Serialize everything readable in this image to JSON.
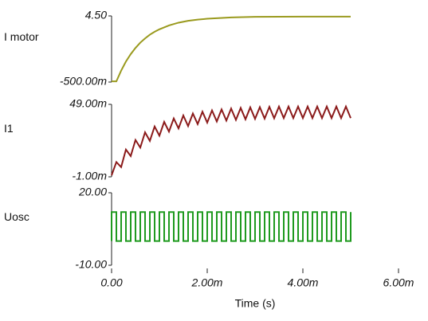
{
  "chart_data": [
    {
      "type": "line",
      "x": [
        0,
        0.0001,
        0.0002,
        0.0003,
        0.0004,
        0.0005,
        0.0006,
        0.0007,
        0.0008,
        0.0009,
        0.001,
        0.0012,
        0.0014,
        0.0016,
        0.0018,
        0.002,
        0.0025,
        0.003,
        0.004,
        0.005
      ],
      "series": [
        {
          "name": "I motor",
          "color": "#9a9a1e",
          "values": [
            -0.45,
            -0.45,
            0.36,
            1.05,
            1.61,
            2.08,
            2.48,
            2.8,
            3.08,
            3.3,
            3.49,
            3.78,
            3.99,
            4.13,
            4.22,
            4.29,
            4.39,
            4.43,
            4.45,
            4.45
          ]
        }
      ],
      "xlim": [
        0,
        0.006
      ],
      "ylim": [
        -0.5,
        4.5
      ],
      "yticks": [
        {
          "value": -0.5,
          "label": "-500.00m"
        },
        {
          "value": 4.5,
          "label": "4.50"
        }
      ]
    },
    {
      "type": "line",
      "x": [
        0,
        0.0001,
        0.0002,
        0.0003,
        0.0004,
        0.0005,
        0.0006,
        0.0007,
        0.0008,
        0.0009,
        0.001,
        0.0011,
        0.0012,
        0.0013,
        0.0014,
        0.0015,
        0.0016,
        0.0017,
        0.0018,
        0.0019,
        0.002,
        0.0021,
        0.0022,
        0.0023,
        0.0024,
        0.0025,
        0.0026,
        0.0027,
        0.0028,
        0.0029,
        0.003,
        0.0031,
        0.0032,
        0.0033,
        0.0034,
        0.0035,
        0.0036,
        0.0037,
        0.0038,
        0.0039,
        0.004,
        0.0041,
        0.0042,
        0.0043,
        0.0044,
        0.0045,
        0.0046,
        0.0047,
        0.0048,
        0.0049,
        0.005
      ],
      "series": [
        {
          "name": "I1",
          "color": "#8b1a1a",
          "values": [
            0,
            0.0092,
            0.0057,
            0.0178,
            0.0133,
            0.0244,
            0.0192,
            0.0297,
            0.0238,
            0.0337,
            0.0274,
            0.0369,
            0.0302,
            0.0393,
            0.0324,
            0.0413,
            0.034,
            0.0427,
            0.0354,
            0.0439,
            0.0364,
            0.0448,
            0.0372,
            0.0455,
            0.0378,
            0.0461,
            0.0383,
            0.0465,
            0.0387,
            0.0469,
            0.039,
            0.0471,
            0.0392,
            0.0473,
            0.0394,
            0.0475,
            0.0395,
            0.0475,
            0.0395,
            0.0475,
            0.0395,
            0.0475,
            0.0395,
            0.0475,
            0.0395,
            0.0475,
            0.0395,
            0.0475,
            0.0395,
            0.0475,
            0.0395
          ]
        }
      ],
      "xlim": [
        0,
        0.006
      ],
      "ylim": [
        -0.001,
        0.049
      ],
      "yticks": [
        {
          "value": -0.001,
          "label": "-1.00m"
        },
        {
          "value": 0.049,
          "label": "49.00m"
        }
      ]
    },
    {
      "type": "line",
      "x": [
        0,
        0,
        0.0001,
        0.0001,
        0.0002,
        0.0002,
        0.0003,
        0.0003,
        0.0004,
        0.0004,
        0.0005,
        0.0005,
        0.0006,
        0.0006,
        0.0007,
        0.0007,
        0.0008,
        0.0008,
        0.0009,
        0.0009,
        0.001,
        0.001,
        0.0011,
        0.0011,
        0.0012,
        0.0012,
        0.0013,
        0.0013,
        0.0014,
        0.0014,
        0.0015,
        0.0015,
        0.0016,
        0.0016,
        0.0017,
        0.0017,
        0.0018,
        0.0018,
        0.0019,
        0.0019,
        0.002,
        0.002,
        0.0021,
        0.0021,
        0.0022,
        0.0022,
        0.0023,
        0.0023,
        0.0024,
        0.0024,
        0.0025,
        0.0025,
        0.0026,
        0.0026,
        0.0027,
        0.0027,
        0.0028,
        0.0028,
        0.0029,
        0.0029,
        0.003,
        0.003,
        0.0031,
        0.0031,
        0.0032,
        0.0032,
        0.0033,
        0.0033,
        0.0034,
        0.0034,
        0.0035,
        0.0035,
        0.0036,
        0.0036,
        0.0037,
        0.0037,
        0.0038,
        0.0038,
        0.0039,
        0.0039,
        0.004,
        0.004,
        0.0041,
        0.0041,
        0.0042,
        0.0042,
        0.0043,
        0.0043,
        0.0044,
        0.0044,
        0.0045,
        0.0045,
        0.0046,
        0.0046,
        0.0047,
        0.0047,
        0.0048,
        0.0048,
        0.0049,
        0.0049,
        0.005,
        0.005
      ],
      "series": [
        {
          "name": "Uosc",
          "color": "#1f9a1f",
          "values": [
            0,
            12,
            12,
            0,
            0,
            12,
            12,
            0,
            0,
            12,
            12,
            0,
            0,
            12,
            12,
            0,
            0,
            12,
            12,
            0,
            0,
            12,
            12,
            0,
            0,
            12,
            12,
            0,
            0,
            12,
            12,
            0,
            0,
            12,
            12,
            0,
            0,
            12,
            12,
            0,
            0,
            12,
            12,
            0,
            0,
            12,
            12,
            0,
            0,
            12,
            12,
            0,
            0,
            12,
            12,
            0,
            0,
            12,
            12,
            0,
            0,
            12,
            12,
            0,
            0,
            12,
            12,
            0,
            0,
            12,
            12,
            0,
            0,
            12,
            12,
            0,
            0,
            12,
            12,
            0,
            0,
            12,
            12,
            0,
            0,
            12,
            12,
            0,
            0,
            12,
            12,
            0,
            0,
            12,
            12,
            0,
            0,
            12,
            12,
            0,
            0,
            12
          ]
        }
      ],
      "xlim": [
        0,
        0.006
      ],
      "ylim": [
        -10,
        20
      ],
      "yticks": [
        {
          "value": -10,
          "label": "-10.00"
        },
        {
          "value": 20,
          "label": "20.00"
        }
      ],
      "xticks": [
        {
          "value": 0,
          "label": "0.00"
        },
        {
          "value": 0.002,
          "label": "2.00m"
        },
        {
          "value": 0.004,
          "label": "4.00m"
        },
        {
          "value": 0.006,
          "label": "6.00m"
        }
      ],
      "xlabel": "Time (s)"
    }
  ]
}
